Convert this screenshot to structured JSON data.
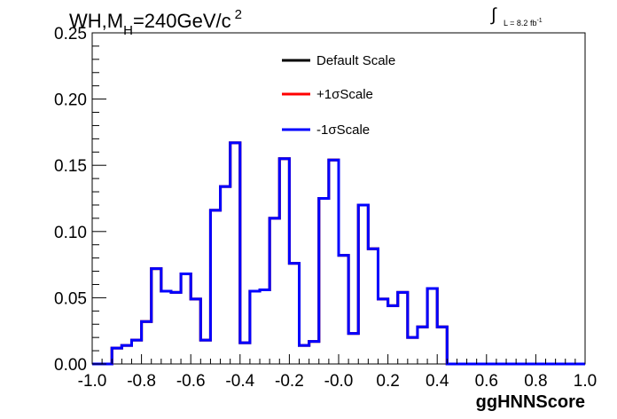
{
  "header": {
    "title_base": "WH,M",
    "title_sub": "H",
    "title_rest": "=240GeV/c",
    "title_sup": "2",
    "lumi_integral": "∫",
    "lumi_text": "L = 8.2 fb",
    "lumi_sup": "-1"
  },
  "chart_data": {
    "type": "line",
    "title": "WH,M_H=240GeV/c^2",
    "xlabel": "ggHNNScore",
    "ylabel": "",
    "xlim": [
      -1.0,
      1.0
    ],
    "ylim": [
      0.0,
      0.25
    ],
    "grid": false,
    "legend_position": "top-center",
    "x_ticks": [
      "-1.0",
      "-0.8",
      "-0.6",
      "-0.4",
      "-0.2",
      "-0.0",
      "0.2",
      "0.4",
      "0.6",
      "0.8",
      "1.0"
    ],
    "y_ticks": [
      "0.00",
      "0.05",
      "0.10",
      "0.15",
      "0.20",
      "0.25"
    ],
    "bin_edges": [
      -1.0,
      -0.96,
      -0.92,
      -0.88,
      -0.84,
      -0.8,
      -0.76,
      -0.72,
      -0.68,
      -0.64,
      -0.6,
      -0.56,
      -0.52,
      -0.48,
      -0.44,
      -0.4,
      -0.36,
      -0.32,
      -0.28,
      -0.24,
      -0.2,
      -0.16,
      -0.12,
      -0.08,
      -0.04,
      0.0,
      0.04,
      0.08,
      0.12,
      0.16,
      0.2,
      0.24,
      0.28,
      0.32,
      0.36,
      0.4,
      0.44,
      0.48,
      0.52,
      0.56,
      0.6,
      0.64,
      0.68,
      0.72,
      0.76,
      0.8,
      0.84,
      0.88,
      0.92,
      0.96,
      1.0
    ],
    "series": [
      {
        "name": "Default Scale",
        "color": "#000000",
        "values": [
          0.0,
          0.0,
          0.012,
          0.014,
          0.018,
          0.032,
          0.072,
          0.055,
          0.054,
          0.068,
          0.049,
          0.018,
          0.116,
          0.134,
          0.167,
          0.016,
          0.055,
          0.056,
          0.11,
          0.155,
          0.076,
          0.014,
          0.017,
          0.125,
          0.154,
          0.082,
          0.023,
          0.12,
          0.087,
          0.049,
          0.044,
          0.054,
          0.02,
          0.028,
          0.057,
          0.028,
          0.0,
          0.0,
          0.0,
          0.0,
          0.0,
          0.0,
          0.0,
          0.0,
          0.0,
          0.0,
          0.0,
          0.0,
          0.0,
          0.0
        ]
      },
      {
        "name": "+1σScale",
        "color": "#ff0000",
        "values": [
          0.0,
          0.0,
          0.012,
          0.014,
          0.018,
          0.032,
          0.072,
          0.055,
          0.054,
          0.068,
          0.049,
          0.018,
          0.116,
          0.134,
          0.167,
          0.016,
          0.055,
          0.056,
          0.11,
          0.155,
          0.076,
          0.014,
          0.017,
          0.125,
          0.154,
          0.082,
          0.023,
          0.12,
          0.087,
          0.049,
          0.044,
          0.054,
          0.02,
          0.028,
          0.057,
          0.028,
          0.0,
          0.0,
          0.0,
          0.0,
          0.0,
          0.0,
          0.0,
          0.0,
          0.0,
          0.0,
          0.0,
          0.0,
          0.0,
          0.0
        ]
      },
      {
        "name": "-1σScale",
        "color": "#0000ff",
        "values": [
          0.0,
          0.0,
          0.012,
          0.014,
          0.018,
          0.032,
          0.072,
          0.055,
          0.054,
          0.068,
          0.049,
          0.018,
          0.116,
          0.134,
          0.167,
          0.016,
          0.055,
          0.056,
          0.11,
          0.155,
          0.076,
          0.014,
          0.017,
          0.125,
          0.154,
          0.082,
          0.023,
          0.12,
          0.087,
          0.049,
          0.044,
          0.054,
          0.02,
          0.028,
          0.057,
          0.028,
          0.0,
          0.0,
          0.0,
          0.0,
          0.0,
          0.0,
          0.0,
          0.0,
          0.0,
          0.0,
          0.0,
          0.0,
          0.0,
          0.0
        ]
      }
    ]
  }
}
